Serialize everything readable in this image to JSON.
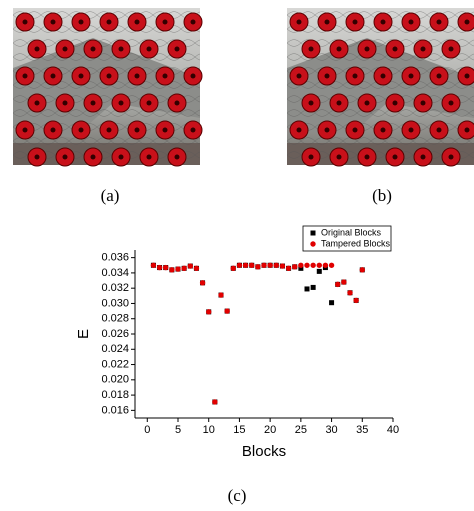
{
  "captions": [
    "(a)",
    "(b)",
    "(c)"
  ],
  "chart_data": {
    "type": "scatter",
    "x_label": "Blocks",
    "y_label": "E",
    "x": [
      1,
      2,
      3,
      4,
      5,
      6,
      7,
      8,
      9,
      10,
      11,
      12,
      13,
      14,
      15,
      16,
      17,
      18,
      19,
      20,
      21,
      22,
      23,
      24,
      25,
      26,
      27,
      28,
      29,
      30,
      31,
      32,
      33,
      34,
      35
    ],
    "series": [
      {
        "name": "Original Blocks",
        "color": "#000000",
        "marker": "square",
        "values": [
          0.035,
          0.0347,
          0.0347,
          0.0344,
          0.0345,
          0.0346,
          0.0349,
          0.0346,
          0.0327,
          0.0289,
          0.0171,
          0.0311,
          0.029,
          0.0346,
          0.035,
          0.035,
          0.035,
          0.0348,
          0.035,
          0.035,
          0.035,
          0.0349,
          0.0346,
          0.0348,
          0.0346,
          0.0319,
          0.0321,
          0.0342,
          0.0347,
          0.0301,
          0.0325,
          0.0328,
          0.0314,
          0.0304,
          0.0344
        ]
      },
      {
        "name": "Tampered Blocks",
        "color": "#e00000",
        "marker": "circle",
        "values": [
          0.035,
          0.0347,
          0.0347,
          0.0344,
          0.0345,
          0.0346,
          0.0349,
          0.0346,
          0.0327,
          0.0289,
          0.0171,
          0.0311,
          0.029,
          0.0346,
          0.035,
          0.035,
          0.035,
          0.0348,
          0.035,
          0.035,
          0.035,
          0.0349,
          0.0346,
          0.0348,
          0.035,
          0.035,
          0.035,
          0.035,
          0.035,
          0.035,
          0.0325,
          0.0328,
          0.0314,
          0.0304,
          0.0344
        ]
      }
    ],
    "xlim": [
      -2,
      40
    ],
    "xticks": [
      0,
      5,
      10,
      15,
      20,
      25,
      30,
      35,
      40
    ],
    "ylim": [
      0.015,
      0.037
    ],
    "yticks": [
      0.016,
      0.018,
      {
        "value": 0.02,
        "label": "0.020"
      },
      0.022,
      0.024,
      0.026,
      0.028,
      {
        "value": 0.03,
        "label": "0.030"
      },
      0.032,
      0.034,
      0.036
    ],
    "legend": "top-right"
  }
}
